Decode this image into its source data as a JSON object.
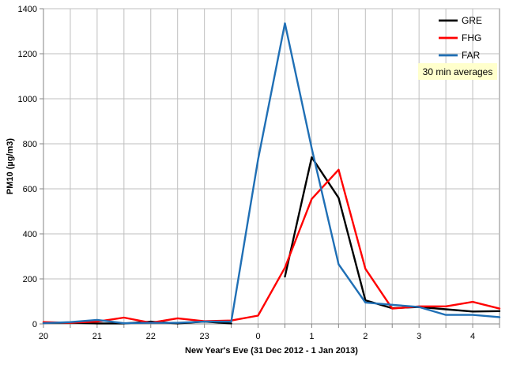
{
  "chart_data": {
    "type": "line",
    "title": "",
    "xlabel": "New Year's Eve (31 Dec 2012 - 1 Jan 2013)",
    "ylabel": "PM10 (µg/m3)",
    "annotation": "30 min averages",
    "annotation_bg": "#ffffcc",
    "x_tick_labels": [
      "20",
      "21",
      "22",
      "23",
      "0",
      "1",
      "2",
      "3",
      "4"
    ],
    "x_tick_hours": [
      20,
      21,
      22,
      23,
      24,
      25,
      26,
      27,
      28
    ],
    "xlim": [
      20,
      28.5
    ],
    "ylim": [
      0,
      1400
    ],
    "y_ticks": [
      0,
      200,
      400,
      600,
      800,
      1000,
      1200,
      1400
    ],
    "grid": true,
    "legend_position": "top-right",
    "series": [
      {
        "name": "GRE",
        "color": "#000000",
        "x": [
          20,
          20.5,
          21,
          21.5,
          22,
          22.5,
          23,
          23.5,
          null,
          24.5,
          25,
          25.5,
          26,
          26.5,
          27,
          27.5,
          28,
          28.5
        ],
        "y": [
          5,
          5,
          2,
          2,
          10,
          2,
          10,
          2,
          null,
          210,
          740,
          560,
          105,
          70,
          75,
          65,
          55,
          57
        ]
      },
      {
        "name": "FHG",
        "color": "#ff0000",
        "x": [
          20,
          20.5,
          21,
          21.5,
          22,
          22.5,
          23,
          23.5,
          24,
          24.5,
          25,
          25.5,
          26,
          26.5,
          27,
          27.5,
          28,
          28.5
        ],
        "y": [
          8,
          5,
          10,
          28,
          5,
          25,
          12,
          15,
          37,
          250,
          555,
          685,
          245,
          68,
          78,
          78,
          98,
          68
        ]
      },
      {
        "name": "FAR",
        "color": "#1f6fb5",
        "x": [
          20,
          20.5,
          21,
          21.5,
          22,
          22.5,
          23,
          23.5,
          24,
          24.5,
          25,
          25.5,
          26,
          26.5,
          27,
          27.5,
          28,
          28.5
        ],
        "y": [
          3,
          8,
          18,
          3,
          5,
          5,
          10,
          10,
          730,
          1335,
          780,
          265,
          95,
          85,
          75,
          40,
          40,
          30
        ]
      }
    ]
  }
}
